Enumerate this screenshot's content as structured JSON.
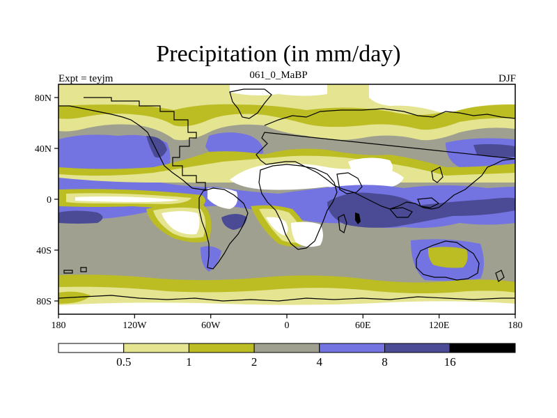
{
  "title": "Precipitation (in mm/day)",
  "subtitle_left": "Expt = teyjm",
  "subtitle_center": "061_0_MaBP",
  "subtitle_right": "DJF",
  "lon_ticks": [
    "180",
    "120W",
    "60W",
    "0",
    "60E",
    "120E",
    "180"
  ],
  "lat_ticks": [
    "80N",
    "40N",
    "0",
    "40S",
    "80S"
  ],
  "colorbar": {
    "colors": [
      "#ffffff",
      "#e4e491",
      "#bcbc23",
      "#a0a090",
      "#7373e2",
      "#4b4b95",
      "#000000"
    ],
    "labels": [
      "0.5",
      "1",
      "2",
      "4",
      "8",
      "16"
    ]
  },
  "colors": {
    "white": "#ffffff",
    "light_yellow": "#e4e491",
    "olive": "#bcbc23",
    "gray": "#a0a090",
    "blue": "#7373e2",
    "dark_blue": "#4b4b95",
    "black": "#000000"
  }
}
